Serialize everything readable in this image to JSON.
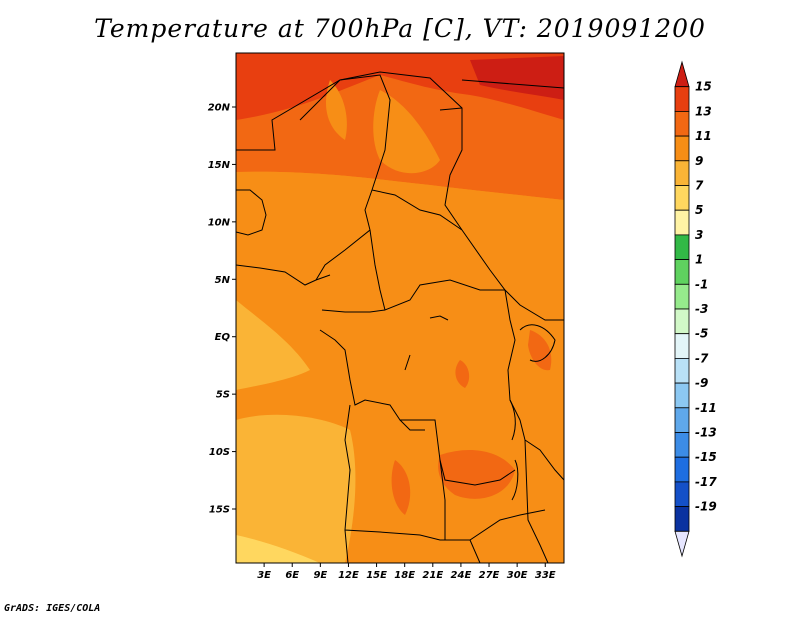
{
  "title": "Temperature at 700hPa [C], VT: 2019091200",
  "credit": "GrADS: IGES/COLA",
  "map": {
    "lat_labels": [
      "20N",
      "15N",
      "10N",
      "5N",
      "EQ",
      "5S",
      "10S",
      "15S"
    ],
    "lat_values": [
      20,
      15,
      10,
      5,
      0,
      -5,
      -10,
      -15
    ],
    "lon_labels": [
      "3E",
      "6E",
      "9E",
      "12E",
      "15E",
      "18E",
      "21E",
      "24E",
      "27E",
      "30E",
      "33E"
    ],
    "lon_values": [
      3,
      6,
      9,
      12,
      15,
      18,
      21,
      24,
      27,
      30,
      33
    ],
    "lat_range": [
      -19.7,
      24.7
    ],
    "lon_range": [
      0,
      35
    ]
  },
  "colorbar": {
    "labels": [
      "15",
      "13",
      "11",
      "9",
      "7",
      "5",
      "3",
      "1",
      "-1",
      "-3",
      "-5",
      "-7",
      "-9",
      "-11",
      "-13",
      "-15",
      "-17",
      "-19"
    ],
    "colors": [
      "#cd1e14",
      "#e83f10",
      "#f26813",
      "#f78e16",
      "#fab436",
      "#ffd75f",
      "#fff3a5",
      "#32b946",
      "#5fd25f",
      "#96ea8c",
      "#d2f8c8",
      "#e3f5f8",
      "#b9e1f7",
      "#8cc8f2",
      "#5fa8eb",
      "#3c8ce6",
      "#1e6ee1",
      "#1450c8",
      "#0a32a0",
      "#001478"
    ]
  }
}
